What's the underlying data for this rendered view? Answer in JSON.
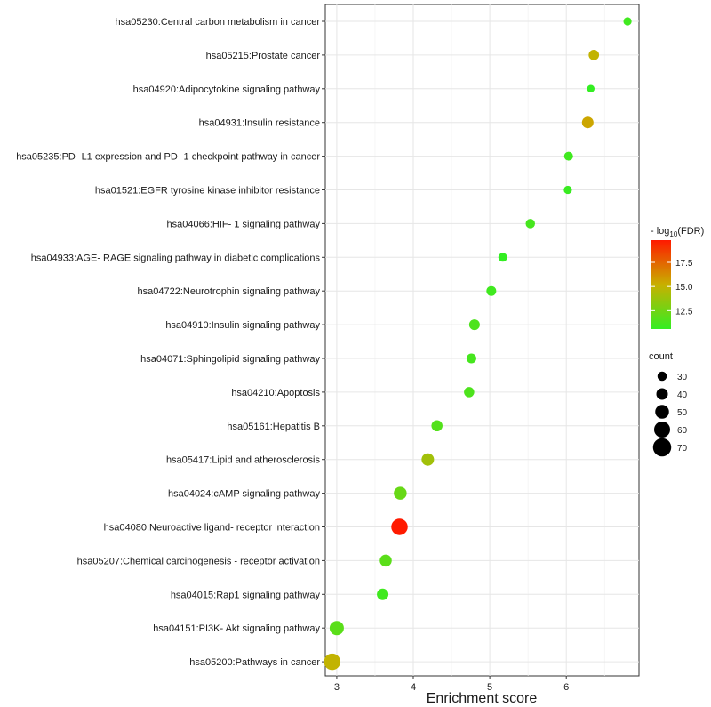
{
  "chart_data": {
    "type": "scatter",
    "title": "",
    "xlabel": "Enrichment score",
    "ylabel": "",
    "xlim": [
      2.85,
      6.95
    ],
    "xticks": [
      3,
      4,
      5,
      6
    ],
    "grid": true,
    "legend_position": "right",
    "color_legend": {
      "title_prefix": "- log",
      "title_sub": "10",
      "title_suffix": "(FDR)",
      "range": [
        10.6,
        19.8
      ],
      "ticks": [
        12.5,
        15.0,
        17.5
      ],
      "tick_labels": [
        "12.5",
        "15.0",
        "17.5"
      ],
      "low_color": "#33ee22",
      "mid_color": "#c8b000",
      "high_color": "#ff1a00"
    },
    "size_legend": {
      "title": "count",
      "values": [
        30,
        40,
        50,
        60,
        70
      ],
      "labels": [
        "30",
        "40",
        "50",
        "60",
        "70"
      ]
    },
    "points": [
      {
        "term": "hsa05230:Central carbon metabolism in cancer",
        "x": 6.8,
        "count": 25,
        "fdr": 11.0
      },
      {
        "term": "hsa05215:Prostate cancer",
        "x": 6.36,
        "count": 35,
        "fdr": 15.0
      },
      {
        "term": "hsa04920:Adipocytokine signaling pathway",
        "x": 6.32,
        "count": 22,
        "fdr": 10.6
      },
      {
        "term": "hsa04931:Insulin resistance",
        "x": 6.28,
        "count": 40,
        "fdr": 15.5
      },
      {
        "term": "hsa05235:PD- L1 expression and PD- 1 checkpoint pathway in cancer",
        "x": 6.03,
        "count": 28,
        "fdr": 11.0
      },
      {
        "term": "hsa01521:EGFR tyrosine kinase inhibitor resistance",
        "x": 6.02,
        "count": 25,
        "fdr": 10.8
      },
      {
        "term": "hsa04066:HIF- 1 signaling pathway",
        "x": 5.53,
        "count": 30,
        "fdr": 11.2
      },
      {
        "term": "hsa04933:AGE- RAGE signaling pathway in diabetic complications",
        "x": 5.17,
        "count": 28,
        "fdr": 10.6
      },
      {
        "term": "hsa04722:Neurotrophin signaling pathway",
        "x": 5.02,
        "count": 32,
        "fdr": 11.0
      },
      {
        "term": "hsa04910:Insulin signaling pathway",
        "x": 4.8,
        "count": 36,
        "fdr": 11.4
      },
      {
        "term": "hsa04071:Sphingolipid signaling pathway",
        "x": 4.76,
        "count": 32,
        "fdr": 11.2
      },
      {
        "term": "hsa04210:Apoptosis",
        "x": 4.73,
        "count": 34,
        "fdr": 11.4
      },
      {
        "term": "hsa05161:Hepatitis B",
        "x": 4.31,
        "count": 38,
        "fdr": 11.6
      },
      {
        "term": "hsa05417:Lipid and atherosclerosis",
        "x": 4.19,
        "count": 44,
        "fdr": 14.0
      },
      {
        "term": "hsa04024:cAMP signaling pathway",
        "x": 3.83,
        "count": 46,
        "fdr": 12.2
      },
      {
        "term": "hsa04080:Neuroactive ligand- receptor interaction",
        "x": 3.82,
        "count": 62,
        "fdr": 19.8
      },
      {
        "term": "hsa05207:Chemical carcinogenesis -  receptor activation",
        "x": 3.64,
        "count": 42,
        "fdr": 11.8
      },
      {
        "term": "hsa04015:Rap1 signaling pathway",
        "x": 3.6,
        "count": 40,
        "fdr": 11.0
      },
      {
        "term": "hsa04151:PI3K- Akt signaling pathway",
        "x": 3.0,
        "count": 52,
        "fdr": 11.8
      },
      {
        "term": "hsa05200:Pathways in cancer",
        "x": 2.94,
        "count": 62,
        "fdr": 15.0
      }
    ]
  }
}
